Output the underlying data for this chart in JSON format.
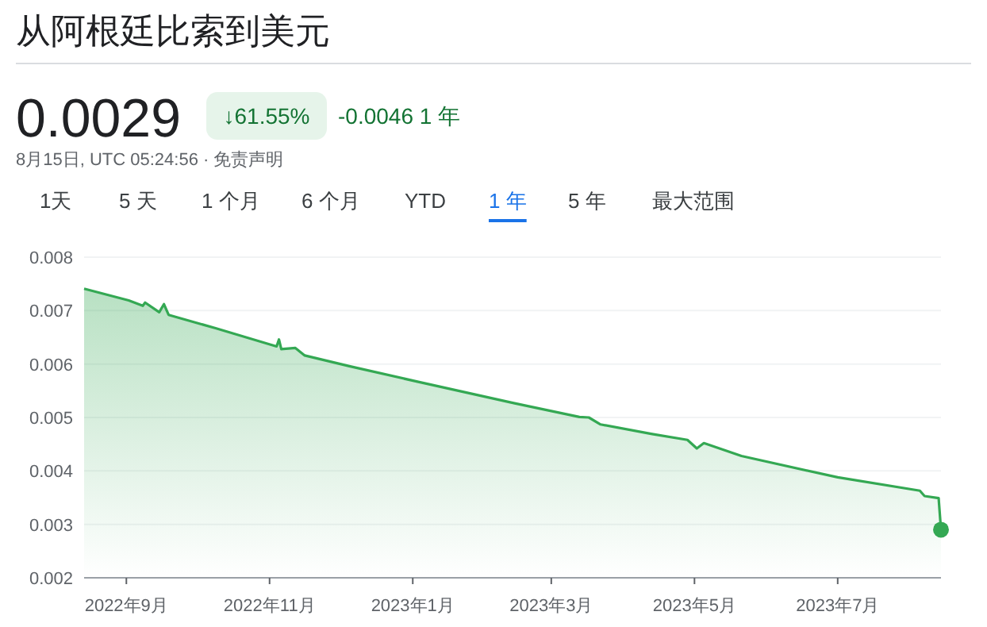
{
  "chart_data": {
    "type": "area",
    "title": "从阿根廷比索到美元",
    "annotations": [
      "0.0029",
      "↓61.55%",
      "-0.0046 1 年",
      "8月15日, UTC 05:24:56 · 免责声明",
      "1天",
      "5 天",
      "1 个月",
      "6 个月",
      "YTD",
      "1 年",
      "5 年",
      "最大范围"
    ],
    "series": [
      {
        "color": "#34a853",
        "x": [
          "2022-08-14",
          "2022-09-02",
          "2022-09-08",
          "2022-09-09",
          "2022-09-15",
          "2022-09-17",
          "2022-09-19",
          "2022-10-09",
          "2022-11-04",
          "2022-11-05",
          "2022-11-06",
          "2022-11-12",
          "2022-11-16",
          "2022-12-05",
          "2023-01-03",
          "2023-02-13",
          "2023-03-13",
          "2023-03-17",
          "2023-03-22",
          "2023-04-13",
          "2023-04-28",
          "2023-05-02",
          "2023-05-05",
          "2023-05-21",
          "2023-07-01",
          "2023-08-05",
          "2023-08-07",
          "2023-08-13",
          "2023-08-14"
        ],
        "values": [
          0.00741,
          0.00719,
          0.00709,
          0.00715,
          0.00697,
          0.00712,
          0.00692,
          0.00667,
          0.00633,
          0.00646,
          0.00628,
          0.0063,
          0.00616,
          0.00596,
          0.00567,
          0.00527,
          0.00501,
          0.005,
          0.00487,
          0.00469,
          0.00458,
          0.00442,
          0.00452,
          0.00428,
          0.00388,
          0.00363,
          0.00353,
          0.00349,
          0.0029
        ]
      },
      {
        "type": "scatter",
        "color": "#34a853",
        "x": [
          "2023-08-14"
        ],
        "values": [
          0.0029
        ]
      }
    ],
    "xlim": [
      "2022-08-14",
      "2023-08-14"
    ],
    "xticks": [
      {
        "value": "2022-09-01",
        "label": "2022年9月"
      },
      {
        "value": "2022-11-01",
        "label": "2022年11月"
      },
      {
        "value": "2023-01-01",
        "label": "2023年1月"
      },
      {
        "value": "2023-03-01",
        "label": "2023年3月"
      },
      {
        "value": "2023-05-01",
        "label": "2023年5月"
      },
      {
        "value": "2023-07-01",
        "label": "2023年7月"
      }
    ],
    "ylim": [
      0.002,
      0.008
    ],
    "yticks": [
      0.002,
      0.003,
      0.004,
      0.005,
      0.006,
      0.007,
      0.008
    ],
    "grid": "y"
  }
}
